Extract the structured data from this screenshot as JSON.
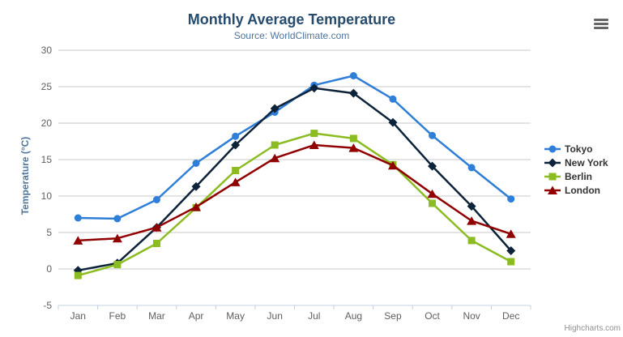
{
  "header": {
    "title": "Monthly Average Temperature",
    "subtitle": "Source: WorldClimate.com",
    "context_menu_icon": "hamburger-menu-icon"
  },
  "credits": {
    "label": "Highcharts.com"
  },
  "colors": {
    "title": "#274b6d",
    "subtitle": "#4d759e",
    "axis_labels": "#606060",
    "axis_title": "#4d759e",
    "gridline": "#c8c8c8",
    "axis_line": "#c0d0e0",
    "legend_text": "#333333",
    "credits_text": "#909090"
  },
  "chart_data": {
    "type": "line",
    "title": "Monthly Average Temperature",
    "subtitle": "Source: WorldClimate.com",
    "xlabel": "",
    "ylabel": "Temperature (°C)",
    "ylim": [
      -5,
      30
    ],
    "y_tick_interval": 5,
    "y_tick_labels": [
      "-5",
      "0",
      "5",
      "10",
      "15",
      "20",
      "25",
      "30"
    ],
    "grid": true,
    "legend_position": "right",
    "categories": [
      "Jan",
      "Feb",
      "Mar",
      "Apr",
      "May",
      "Jun",
      "Jul",
      "Aug",
      "Sep",
      "Oct",
      "Nov",
      "Dec"
    ],
    "series": [
      {
        "name": "Tokyo",
        "color": "#2f7ed8",
        "marker": "circle",
        "values": [
          7.0,
          6.9,
          9.5,
          14.5,
          18.2,
          21.5,
          25.2,
          26.5,
          23.3,
          18.3,
          13.9,
          9.6
        ]
      },
      {
        "name": "New York",
        "color": "#0d233a",
        "marker": "diamond",
        "values": [
          -0.2,
          0.8,
          5.7,
          11.3,
          17.0,
          22.0,
          24.8,
          24.1,
          20.1,
          14.1,
          8.6,
          2.5
        ]
      },
      {
        "name": "Berlin",
        "color": "#8bbc21",
        "marker": "square",
        "values": [
          -0.9,
          0.6,
          3.5,
          8.4,
          13.5,
          17.0,
          18.6,
          17.9,
          14.3,
          9.0,
          3.9,
          1.0
        ]
      },
      {
        "name": "London",
        "color": "#910000",
        "marker": "triangle",
        "values": [
          3.9,
          4.2,
          5.7,
          8.5,
          11.9,
          15.2,
          17.0,
          16.6,
          14.2,
          10.3,
          6.6,
          4.8
        ]
      }
    ]
  }
}
